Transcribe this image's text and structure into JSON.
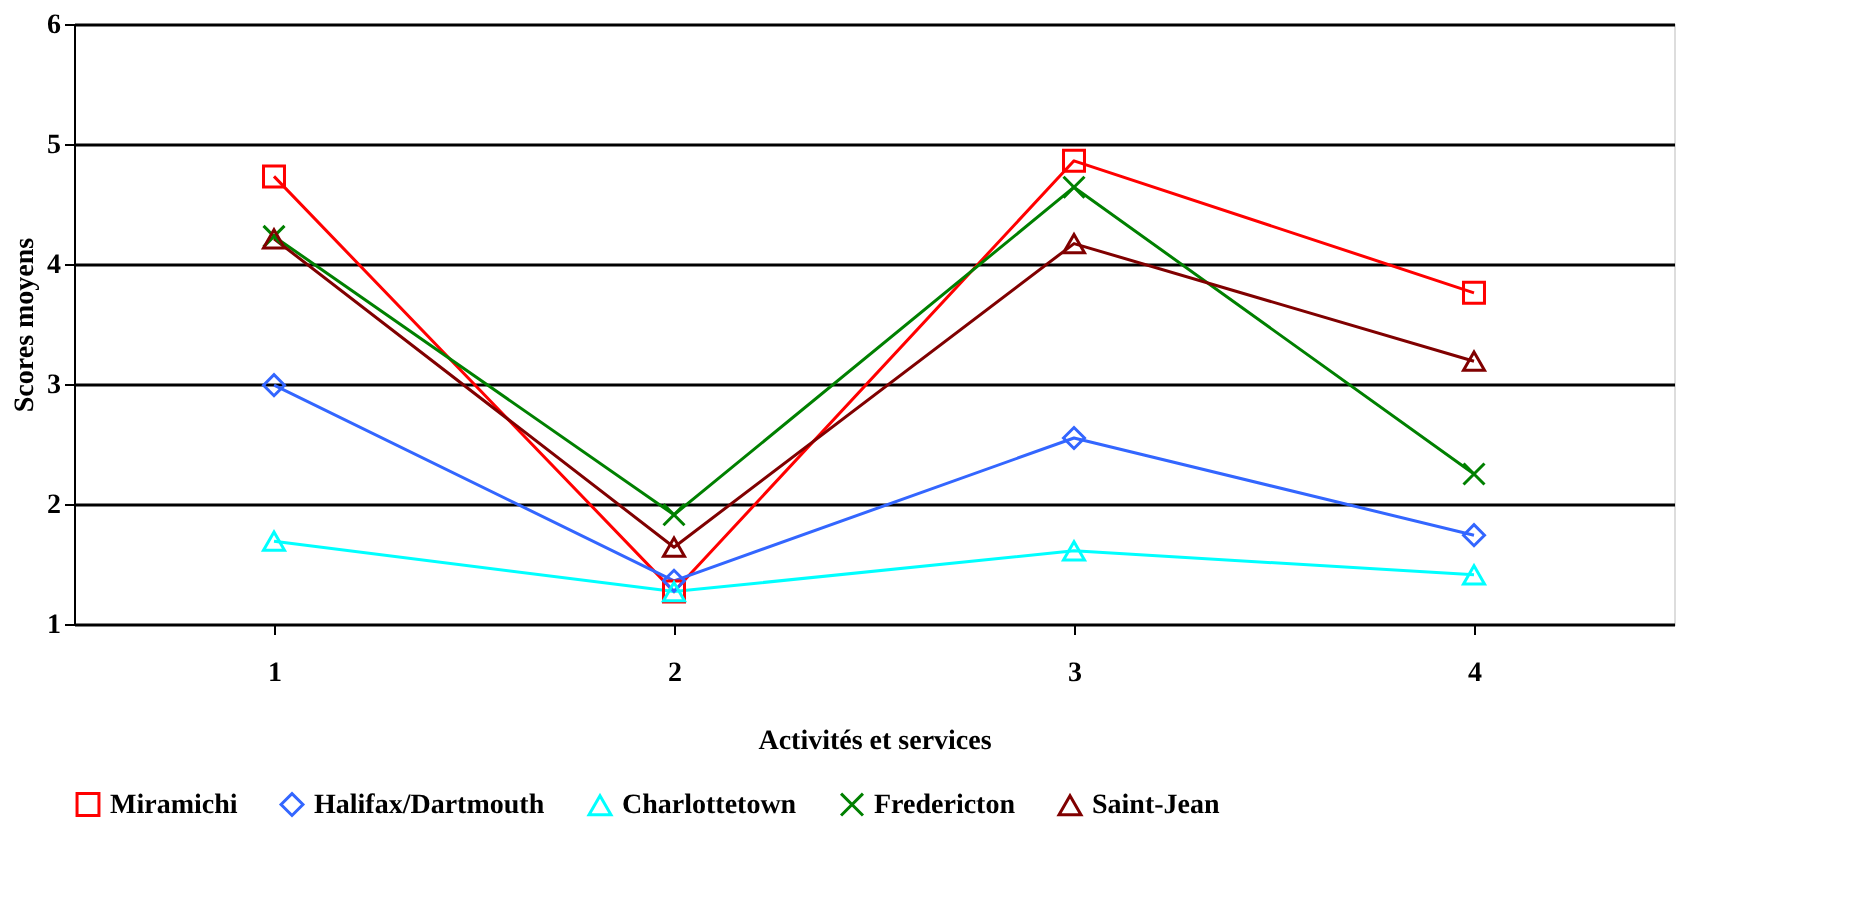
{
  "chart_data": {
    "type": "line",
    "xlabel": "Activités et services",
    "ylabel": "Scores moyens",
    "categories": [
      "1",
      "2",
      "3",
      "4"
    ],
    "series": [
      {
        "name": "Miramichi",
        "color": "#ff0000",
        "marker": "square",
        "values": [
          4.73,
          1.27,
          4.86,
          3.76
        ]
      },
      {
        "name": "Halifax/Dartmouth",
        "color": "#3366ff",
        "marker": "diamond",
        "values": [
          2.99,
          1.36,
          2.55,
          1.74
        ]
      },
      {
        "name": "Charlottetown",
        "color": "#00ffff",
        "marker": "triangle",
        "values": [
          1.69,
          1.27,
          1.61,
          1.41
        ]
      },
      {
        "name": "Fredericton",
        "color": "#008000",
        "marker": "cross",
        "values": [
          4.23,
          1.91,
          4.64,
          2.25
        ]
      },
      {
        "name": "Saint-Jean",
        "color": "#800000",
        "marker": "triangle",
        "values": [
          4.21,
          1.64,
          4.17,
          3.19
        ]
      }
    ],
    "ylim": [
      1,
      6
    ],
    "yticks": [
      1,
      2,
      3,
      4,
      5,
      6
    ],
    "grid": "y",
    "legend": "bottom",
    "line_style": "solid"
  }
}
